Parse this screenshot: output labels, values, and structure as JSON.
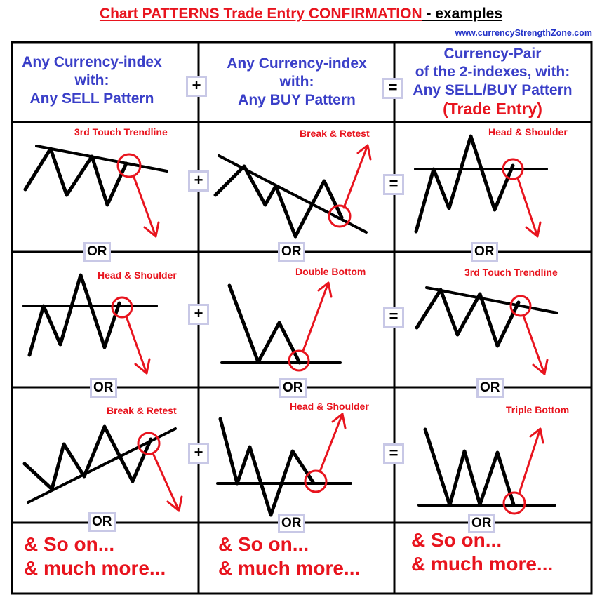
{
  "title": {
    "part1": "Chart PATTERNS Trade Entry CONFIRMATION",
    "part2": " - examples"
  },
  "website": "www.currencyStrengthZone.com",
  "headers": {
    "col1": [
      "Any Currency-index",
      "with:",
      "Any SELL Pattern"
    ],
    "col2": [
      "Any Currency-index",
      "with:",
      "Any BUY Pattern"
    ],
    "col3": [
      "Currency-Pair",
      "of the 2-indexes, with:",
      "Any SELL/BUY Pattern"
    ],
    "col3_entry": "(Trade Entry)"
  },
  "operators": {
    "plus": "+",
    "equals": "="
  },
  "or_label": "OR",
  "patterns": {
    "r1c1": "3rd Touch Trendline",
    "r1c2": "Break & Retest",
    "r1c3": "Head & Shoulder",
    "r2c1": "Head & Shoulder",
    "r2c2": "Double Bottom",
    "r2c3": "3rd Touch Trendline",
    "r3c1": "Break & Retest",
    "r3c2": "Head & Shoulder",
    "r3c3": "Triple Bottom"
  },
  "footer": {
    "line1": "& So on...",
    "line2": "& much more..."
  },
  "colors": {
    "red": "#e8141e",
    "blue": "#3a3fc8",
    "op_border": "#c8c8e6"
  }
}
